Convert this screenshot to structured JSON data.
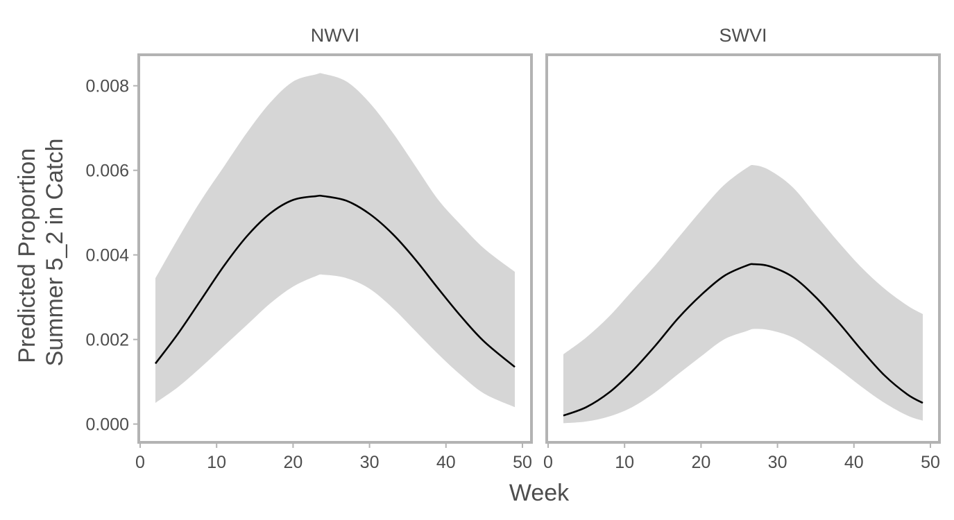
{
  "chart_data": {
    "type": "line",
    "xlabel": "Week",
    "ylabel_lines": [
      "Predicted Proportion",
      "Summer 5_2 in Catch"
    ],
    "xlim": [
      0,
      51
    ],
    "ylim": [
      -0.0004,
      0.0087
    ],
    "x_ticks": [
      0,
      10,
      20,
      30,
      40,
      50
    ],
    "x_tick_labels": [
      "0",
      "10",
      "20",
      "30",
      "40",
      "50"
    ],
    "y_ticks": [
      0,
      0.002,
      0.004,
      0.006,
      0.008
    ],
    "y_tick_labels": [
      "0.000",
      "0.002",
      "0.004",
      "0.006",
      "0.008"
    ],
    "colors": {
      "band": "#d6d6d6",
      "line": "#000000",
      "frame": "#b3b3b3",
      "text": "#4d4d4d"
    },
    "panels": [
      {
        "title": "NWVI",
        "x": [
          2,
          5,
          8,
          11,
          14,
          17,
          20,
          23,
          24,
          27,
          30,
          33,
          36,
          39,
          42,
          45,
          49
        ],
        "fit": [
          0.00143,
          0.00215,
          0.00295,
          0.00375,
          0.00445,
          0.00498,
          0.0053,
          0.00539,
          0.00539,
          0.00528,
          0.00497,
          0.0045,
          0.00389,
          0.0032,
          0.00254,
          0.00195,
          0.00135
        ],
        "lower": [
          0.0005,
          0.00088,
          0.00135,
          0.00185,
          0.00235,
          0.00285,
          0.00325,
          0.0035,
          0.00353,
          0.00345,
          0.0032,
          0.00275,
          0.0022,
          0.00165,
          0.00115,
          0.00072,
          0.0004
        ],
        "upper": [
          0.00345,
          0.0044,
          0.0053,
          0.0061,
          0.0069,
          0.0076,
          0.0081,
          0.00827,
          0.00828,
          0.0081,
          0.0076,
          0.0069,
          0.0061,
          0.0053,
          0.0047,
          0.00415,
          0.0036
        ]
      },
      {
        "title": "SWVI",
        "x": [
          2,
          5,
          8,
          11,
          14,
          17,
          20,
          23,
          26,
          27,
          29,
          32,
          35,
          38,
          41,
          44,
          47,
          49
        ],
        "fit": [
          0.0002,
          0.0004,
          0.00075,
          0.00125,
          0.00185,
          0.0025,
          0.00305,
          0.0035,
          0.00375,
          0.00378,
          0.00373,
          0.00348,
          0.003,
          0.0024,
          0.00175,
          0.00115,
          0.0007,
          0.0005
        ],
        "lower": [
          2e-05,
          6e-05,
          0.00018,
          0.0004,
          0.00075,
          0.00118,
          0.0016,
          0.002,
          0.0022,
          0.00225,
          0.00222,
          0.00205,
          0.0017,
          0.0013,
          0.00088,
          0.0005,
          0.0002,
          8e-05
        ],
        "upper": [
          0.00165,
          0.00205,
          0.00255,
          0.00315,
          0.00375,
          0.0044,
          0.00505,
          0.00565,
          0.00606,
          0.00612,
          0.006,
          0.0056,
          0.00495,
          0.0043,
          0.0037,
          0.0032,
          0.0028,
          0.0026
        ]
      }
    ]
  }
}
